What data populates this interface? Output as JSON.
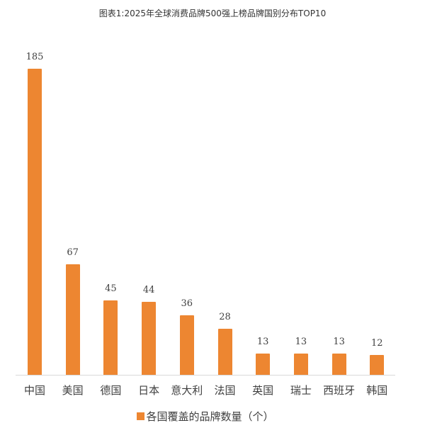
{
  "chart_data": {
    "type": "bar",
    "title": "图表1:2025年全球消费品牌500强上榜品牌国别分布TOP10",
    "categories": [
      "中国",
      "美国",
      "德国",
      "日本",
      "意大利",
      "法国",
      "英国",
      "瑞士",
      "西班牙",
      "韩国"
    ],
    "series": [
      {
        "name": "各国覆盖的品牌数量（个）",
        "values": [
          185,
          67,
          45,
          44,
          36,
          28,
          13,
          13,
          13,
          12
        ],
        "color": "#ed8631"
      }
    ],
    "xlabel": "",
    "ylabel": "",
    "ylim": [
      0,
      185
    ],
    "grid": false,
    "legend_position": "bottom",
    "data_labels": true
  },
  "title": "图表1:2025年全球消费品牌500强上榜品牌国别分布TOP10",
  "legend": {
    "label": "各国覆盖的品牌数量（个）",
    "color": "#ed8631"
  }
}
